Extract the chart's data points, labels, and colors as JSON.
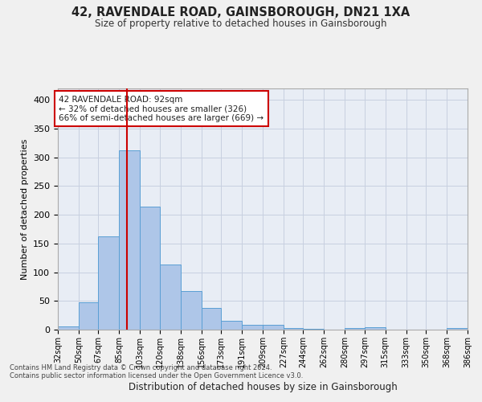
{
  "title1": "42, RAVENDALE ROAD, GAINSBOROUGH, DN21 1XA",
  "title2": "Size of property relative to detached houses in Gainsborough",
  "xlabel": "Distribution of detached houses by size in Gainsborough",
  "ylabel": "Number of detached properties",
  "footnote1": "Contains HM Land Registry data © Crown copyright and database right 2024.",
  "footnote2": "Contains public sector information licensed under the Open Government Licence v3.0.",
  "annotation_line1": "42 RAVENDALE ROAD: 92sqm",
  "annotation_line2": "← 32% of detached houses are smaller (326)",
  "annotation_line3": "66% of semi-detached houses are larger (669) →",
  "subject_value": 92,
  "bar_edges": [
    32,
    50,
    67,
    85,
    103,
    120,
    138,
    156,
    173,
    191,
    209,
    227,
    244,
    262,
    280,
    297,
    315,
    333,
    350,
    368,
    386
  ],
  "bar_heights": [
    5,
    47,
    163,
    312,
    214,
    114,
    67,
    38,
    15,
    9,
    9,
    3,
    1,
    0,
    3,
    4,
    0,
    0,
    0,
    3
  ],
  "bar_color": "#aec6e8",
  "bar_edge_color": "#5a9fd4",
  "red_line_color": "#cc0000",
  "annotation_box_color": "#cc0000",
  "grid_color": "#c8d0e0",
  "bg_color": "#e8edf5",
  "fig_bg_color": "#f0f0f0",
  "ylim": [
    0,
    420
  ],
  "yticks": [
    0,
    50,
    100,
    150,
    200,
    250,
    300,
    350,
    400
  ]
}
